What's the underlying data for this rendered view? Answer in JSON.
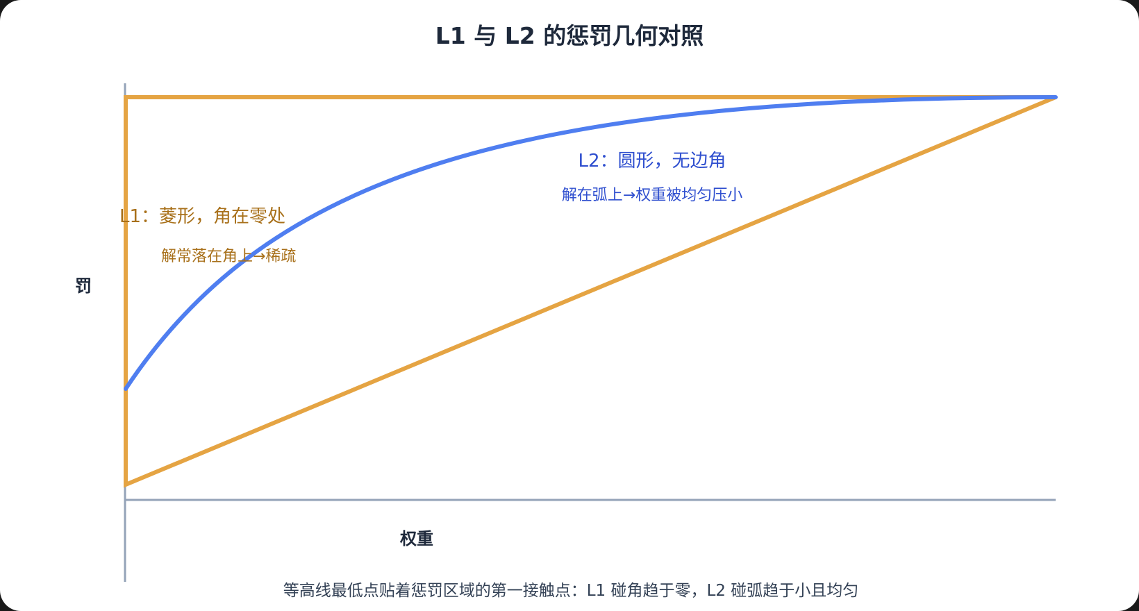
{
  "title": "L1 与 L2 的惩罚几何对照",
  "axes": {
    "y_label": "罚",
    "x_label": "权重"
  },
  "l1": {
    "label": "L1：菱形，角在零处",
    "sublabel": "解常落在角上→稀疏",
    "color": "#e5a443"
  },
  "l2": {
    "label": "L2：圆形，无边角",
    "sublabel": "解在弧上→权重被均匀压小",
    "color": "#4f7ef0"
  },
  "caption": "等高线最低点贴着惩罚区域的第一接触点：L1 碰角趋于零，L2 碰弧趋于小且均匀",
  "axis_color": "#94a3b8"
}
